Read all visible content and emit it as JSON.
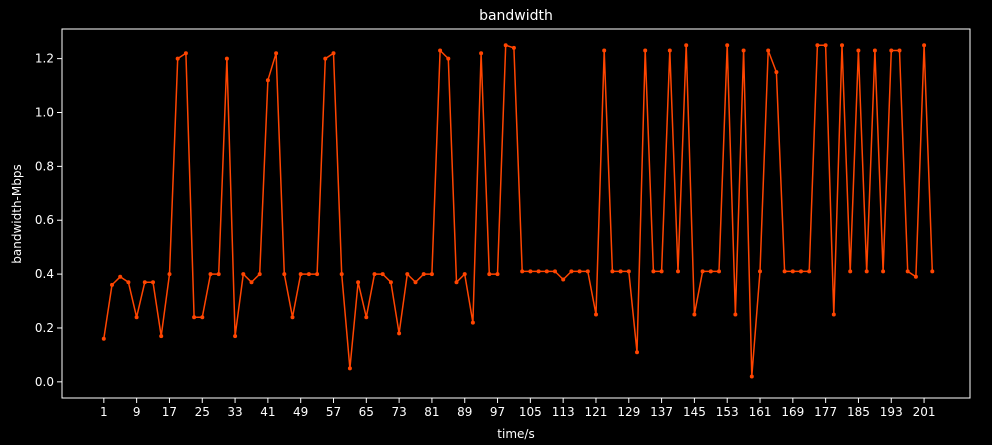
{
  "chart_data": {
    "type": "line",
    "title": "bandwidth",
    "xlabel": "time/s",
    "ylabel": "bandwidth-Mbps",
    "xlim": [
      -9.2,
      212.2
    ],
    "ylim": [
      -0.06,
      1.31
    ],
    "xticks": [
      1,
      9,
      17,
      25,
      33,
      41,
      49,
      57,
      65,
      73,
      81,
      89,
      97,
      105,
      113,
      121,
      129,
      137,
      145,
      153,
      161,
      169,
      177,
      185,
      193,
      201
    ],
    "yticks": [
      0.0,
      0.2,
      0.4,
      0.6,
      0.8,
      1.0,
      1.2
    ],
    "ytick_labels": [
      "0.0",
      "0.2",
      "0.4",
      "0.6",
      "0.8",
      "1.0",
      "1.2"
    ],
    "grid": false,
    "colors": {
      "background": "#000000",
      "line": "#ff4500",
      "axes": "#ffffff",
      "text": "#ffffff"
    },
    "series": [
      {
        "x": [
          1,
          3,
          5,
          7,
          9,
          11,
          13,
          15,
          17,
          19,
          21,
          23,
          25,
          27,
          29,
          31,
          33,
          35,
          37,
          39,
          41,
          43,
          45,
          47,
          49,
          51,
          53,
          55,
          57,
          59,
          61,
          63,
          65,
          67,
          69,
          71,
          73,
          75,
          77,
          79,
          81,
          83,
          85,
          87,
          89,
          91,
          93,
          95,
          97,
          99,
          101,
          103,
          105,
          107,
          109,
          111,
          113,
          115,
          117,
          119,
          121,
          123,
          125,
          127,
          129,
          131,
          133,
          135,
          137,
          139,
          141,
          143,
          145,
          147,
          149,
          151,
          153,
          155,
          157,
          159,
          161,
          163,
          165,
          167,
          169,
          171,
          173,
          175,
          177,
          179,
          181,
          183,
          185,
          187,
          189,
          191,
          193,
          195,
          197,
          199,
          201,
          203
        ],
        "y": [
          0.16,
          0.36,
          0.39,
          0.37,
          0.24,
          0.37,
          0.37,
          0.17,
          0.4,
          1.2,
          1.22,
          0.24,
          0.24,
          0.4,
          0.4,
          1.2,
          0.17,
          0.4,
          0.37,
          0.4,
          1.12,
          1.22,
          0.4,
          0.24,
          0.4,
          0.4,
          0.4,
          1.2,
          1.22,
          0.4,
          0.05,
          0.37,
          0.24,
          0.4,
          0.4,
          0.37,
          0.18,
          0.4,
          0.37,
          0.4,
          0.4,
          1.23,
          1.2,
          0.37,
          0.4,
          0.22,
          1.22,
          0.4,
          0.4,
          1.25,
          1.24,
          0.41,
          0.41,
          0.41,
          0.41,
          0.41,
          0.38,
          0.41,
          0.41,
          0.41,
          0.25,
          1.23,
          0.41,
          0.41,
          0.41,
          0.11,
          1.23,
          0.41,
          0.41,
          1.23,
          0.41,
          1.25,
          0.25,
          0.41,
          0.41,
          0.41,
          1.25,
          0.25,
          1.23,
          0.02,
          0.41,
          1.23,
          1.15,
          0.41,
          0.41,
          0.41,
          0.41,
          1.25,
          1.25,
          0.25,
          1.25,
          0.41,
          1.23,
          0.41,
          1.23,
          0.41,
          1.23,
          1.23,
          0.41,
          0.39,
          1.25,
          0.41
        ]
      }
    ]
  }
}
